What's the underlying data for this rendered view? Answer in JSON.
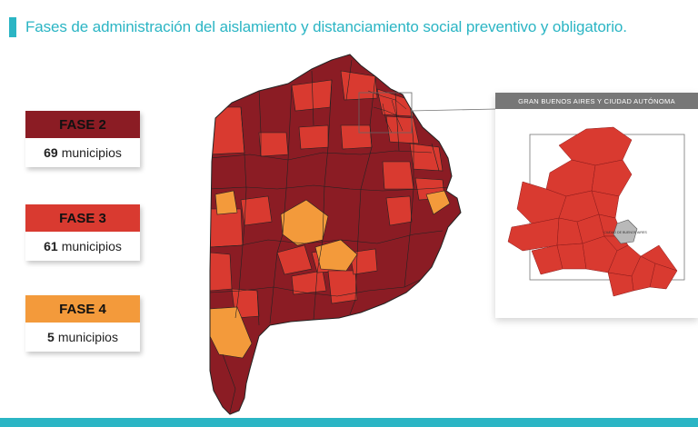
{
  "header": {
    "title": "Fases de administración del aislamiento y distanciamiento social preventivo y obligatorio."
  },
  "legend": [
    {
      "label": "FASE 2",
      "count": "69",
      "unit": "municipios",
      "color": "#8b1c24"
    },
    {
      "label": "FASE 3",
      "count": "61",
      "unit": "municipios",
      "color": "#d93a30"
    },
    {
      "label": "FASE 4",
      "count": "5",
      "unit": "municipios",
      "color": "#f39a3b"
    }
  ],
  "inset": {
    "title": "GRAN BUENOS AIRES Y CIUDAD AUTÓNOMA",
    "caba_label": "CIUDAD DE BUENOS AIRES",
    "caba_color": "#b9b9b9"
  },
  "colors": {
    "accent": "#2bb5c4",
    "border": "#222222"
  }
}
